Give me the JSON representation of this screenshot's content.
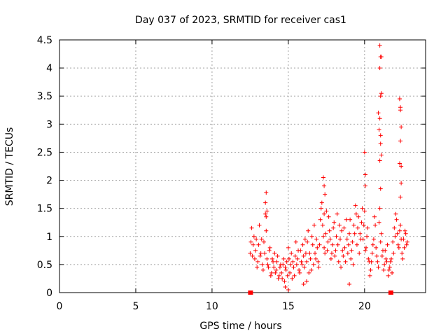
{
  "chart_data": {
    "type": "scatter",
    "title": "Day 037 of 2023, SRMTID for receiver cas1",
    "xlabel": "GPS time / hours",
    "ylabel": "SRMTID / TECUs",
    "xlim": [
      0,
      24
    ],
    "ylim": [
      0,
      4.5
    ],
    "xticks": [
      0,
      5,
      10,
      15,
      20
    ],
    "yticks": [
      0,
      0.5,
      1,
      1.5,
      2,
      2.5,
      3,
      3.5,
      4,
      4.5
    ],
    "grid": true,
    "marker": "plus",
    "color": "#ff0000",
    "baseline_markers": [
      {
        "x": 12.5,
        "y": 0
      },
      {
        "x": 21.7,
        "y": 0
      }
    ],
    "series": [
      {
        "name": "cas1",
        "x": [
          12.5,
          12.6,
          12.7,
          12.8,
          12.9,
          13.0,
          13.1,
          13.2,
          13.3,
          13.4,
          13.5,
          13.6,
          13.7,
          13.8,
          13.9,
          14.0,
          14.1,
          14.2,
          14.3,
          14.4,
          14.5,
          14.6,
          14.7,
          14.8,
          14.9,
          15.0,
          15.1,
          15.2,
          15.3,
          15.4,
          15.5,
          15.6,
          15.7,
          15.8,
          15.9,
          16.0,
          16.1,
          16.2,
          16.3,
          16.4,
          16.5,
          16.6,
          16.7,
          16.8,
          16.9,
          17.0,
          17.1,
          17.2,
          17.3,
          17.4,
          17.5,
          17.6,
          17.7,
          17.8,
          17.9,
          18.0,
          18.1,
          18.2,
          18.3,
          18.4,
          18.5,
          18.6,
          18.7,
          18.8,
          18.9,
          19.0,
          19.1,
          19.2,
          19.3,
          19.4,
          19.5,
          19.6,
          19.7,
          19.8,
          19.9,
          20.0,
          20.1,
          20.2,
          20.3,
          20.4,
          20.5,
          20.6,
          20.7,
          20.8,
          20.9,
          21.0,
          21.1,
          21.2,
          21.3,
          21.4,
          21.5,
          21.6,
          21.7,
          21.8,
          21.9,
          22.0,
          22.1,
          22.2,
          22.3,
          22.4,
          22.5,
          22.6,
          22.7,
          22.8,
          12.55,
          12.65,
          12.75,
          12.85,
          12.95,
          13.05,
          13.15,
          13.25,
          13.35,
          13.45,
          13.55,
          13.65,
          13.75,
          13.85,
          13.95,
          14.05,
          14.15,
          14.25,
          14.35,
          14.45,
          14.55,
          14.65,
          14.75,
          14.85,
          14.95,
          15.05,
          15.15,
          15.25,
          15.35,
          15.45,
          15.55,
          15.65,
          15.75,
          15.85,
          15.95,
          16.05,
          16.15,
          16.25,
          16.35,
          16.45,
          16.55,
          16.65,
          16.75,
          16.85,
          16.95,
          17.05,
          17.15,
          17.25,
          17.35,
          17.45,
          17.55,
          17.65,
          17.75,
          17.85,
          17.95,
          18.05,
          18.15,
          18.25,
          18.35,
          18.45,
          18.55,
          18.65,
          18.75,
          18.85,
          18.95,
          19.05,
          19.15,
          19.25,
          19.35,
          19.45,
          19.55,
          19.65,
          19.75,
          19.85,
          19.95,
          20.05,
          20.15,
          20.25,
          20.35,
          20.45,
          20.55,
          20.65,
          20.75,
          20.85,
          20.95,
          21.05,
          21.15,
          21.25,
          21.35,
          21.45,
          21.55,
          21.65,
          21.75,
          21.85,
          21.95,
          22.05,
          22.15,
          22.25,
          22.35,
          22.45,
          22.55,
          22.65,
          22.75,
          13.5,
          13.55,
          13.6,
          17.3,
          17.35,
          17.4,
          20.0,
          20.05,
          20.9,
          20.95,
          21.0,
          21.05,
          21.1,
          21.0,
          21.05,
          21.1,
          21.0,
          21.05,
          22.3,
          22.35,
          22.4,
          22.35,
          22.3,
          22.4,
          22.35,
          13.55,
          17.35,
          20.05,
          21.0,
          21.05,
          21.1,
          21.05,
          22.35,
          22.4,
          22.3,
          14.8,
          15.0,
          16.0,
          16.2,
          19.0
        ],
        "y": [
          0.7,
          1.15,
          0.85,
          0.6,
          0.95,
          0.55,
          1.2,
          0.7,
          0.5,
          0.9,
          1.4,
          0.6,
          0.45,
          0.8,
          0.35,
          0.55,
          0.7,
          0.4,
          0.65,
          0.3,
          0.5,
          0.25,
          0.6,
          0.45,
          0.55,
          0.8,
          0.35,
          0.7,
          0.55,
          0.3,
          0.9,
          0.6,
          0.4,
          0.75,
          0.5,
          0.65,
          0.95,
          0.55,
          1.1,
          0.7,
          0.4,
          0.85,
          1.2,
          0.6,
          0.8,
          0.45,
          1.3,
          1.6,
          1.0,
          0.7,
          1.45,
          0.9,
          1.1,
          0.6,
          0.85,
          1.25,
          0.75,
          1.4,
          0.55,
          0.95,
          1.1,
          0.65,
          0.8,
          1.3,
          0.7,
          1.05,
          0.6,
          0.9,
          1.2,
          1.55,
          0.85,
          1.35,
          1.05,
          1.25,
          0.95,
          1.45,
          0.8,
          1.15,
          0.55,
          0.4,
          0.7,
          0.95,
          1.2,
          0.65,
          0.45,
          1.5,
          1.05,
          0.75,
          0.5,
          0.6,
          0.85,
          0.4,
          0.55,
          0.35,
          0.7,
          1.0,
          1.3,
          0.85,
          1.1,
          0.95,
          0.6,
          0.8,
          1.05,
          0.9,
          0.9,
          0.65,
          1.0,
          0.75,
          0.45,
          0.85,
          0.65,
          0.95,
          0.4,
          0.7,
          1.1,
          0.5,
          0.75,
          0.3,
          0.6,
          0.45,
          0.35,
          0.55,
          0.25,
          0.45,
          0.35,
          0.5,
          0.2,
          0.4,
          0.3,
          0.6,
          0.5,
          0.25,
          0.45,
          0.65,
          0.5,
          0.75,
          0.35,
          0.55,
          0.85,
          0.45,
          0.7,
          0.9,
          0.35,
          0.6,
          1.0,
          0.5,
          0.7,
          0.95,
          0.55,
          0.85,
          1.5,
          1.2,
          0.8,
          1.05,
          0.75,
          1.35,
          0.95,
          0.7,
          1.15,
          0.65,
          1.0,
          0.85,
          1.2,
          0.45,
          0.75,
          1.15,
          0.55,
          0.95,
          0.85,
          1.3,
          0.75,
          0.5,
          1.05,
          1.4,
          1.15,
          0.7,
          0.95,
          1.5,
          1.2,
          0.75,
          1.0,
          0.6,
          0.3,
          0.55,
          0.85,
          1.35,
          0.8,
          0.55,
          1.25,
          0.9,
          0.65,
          0.4,
          0.75,
          0.55,
          0.3,
          0.45,
          0.6,
          0.9,
          1.15,
          1.4,
          1.05,
          0.8,
          1.2,
          0.7,
          0.95,
          1.1,
          0.85,
          1.6,
          1.78,
          1.45,
          2.05,
          1.9,
          1.75,
          2.5,
          1.9,
          3.2,
          2.9,
          4.4,
          4.2,
          3.55,
          4.0,
          2.8,
          2.45,
          2.35,
          1.85,
          3.45,
          3.3,
          2.95,
          2.7,
          2.3,
          1.95,
          1.7,
          1.35,
          1.4,
          2.1,
          3.1,
          2.65,
          4.2,
          3.5,
          3.25,
          2.25,
          3.45,
          0.1,
          0.05,
          0.15,
          0.2,
          0.15
        ]
      }
    ]
  }
}
